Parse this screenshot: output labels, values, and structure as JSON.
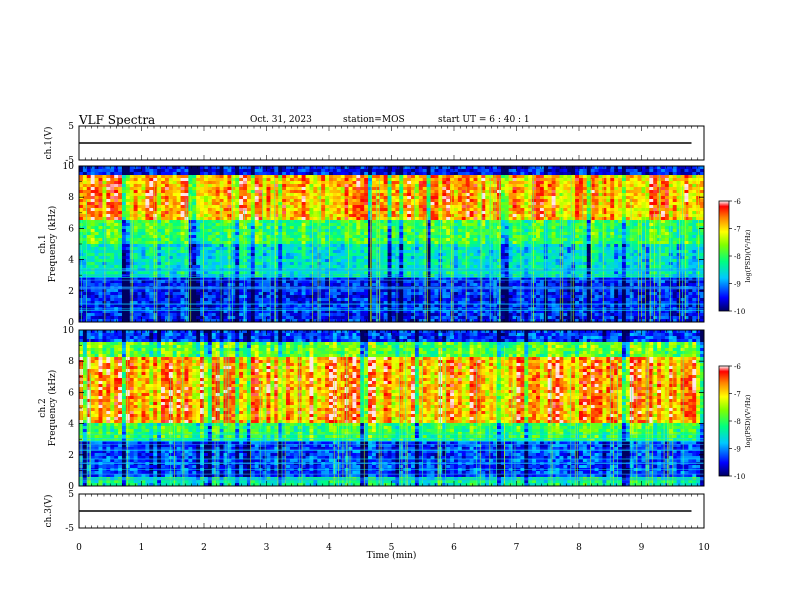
{
  "header": {
    "title": "VLF Spectra",
    "date": "Oct. 31, 2023",
    "station": "station=MOS",
    "start": "start  UT =  6 : 40 : 1"
  },
  "chart_data": [
    {
      "type": "line",
      "panel": "ch1-waveform",
      "ylabel": "ch.1(V)",
      "ylim": [
        -5,
        5
      ],
      "yticks": [
        "5",
        "-5"
      ],
      "xlim": [
        0,
        10
      ],
      "series": [
        {
          "x": [
            0,
            9.8
          ],
          "y": [
            0,
            0
          ]
        }
      ]
    },
    {
      "type": "heatmap",
      "panel": "ch1-spectrogram",
      "ylabel": "ch.1 Frequency (kHz)",
      "ylim": [
        0,
        10
      ],
      "yticks": [
        "0",
        "2",
        "4",
        "6",
        "8",
        "10"
      ],
      "xlim": [
        0,
        10
      ],
      "colorbar": {
        "label": "log(PSD)(V²/Hz)",
        "range": [
          -10,
          -6
        ],
        "ticks": [
          "-6",
          "-7",
          "-8",
          "-9",
          "-10"
        ]
      }
    },
    {
      "type": "heatmap",
      "panel": "ch2-spectrogram",
      "ylabel": "ch.2 Frequency (kHz)",
      "ylim": [
        0,
        10
      ],
      "yticks": [
        "0",
        "2",
        "4",
        "6",
        "8",
        "10"
      ],
      "xlim": [
        0,
        10
      ],
      "colorbar": {
        "label": "log(PSD)(V²/Hz)",
        "range": [
          -10,
          -6
        ],
        "ticks": [
          "-6",
          "-7",
          "-8",
          "-9",
          "-10"
        ]
      }
    },
    {
      "type": "line",
      "panel": "ch3-waveform",
      "ylabel": "ch.3(V)",
      "ylim": [
        -5,
        5
      ],
      "yticks": [
        "5",
        "-5"
      ],
      "xlim": [
        0,
        10
      ],
      "xlabel": "Time  (min)",
      "xticks": [
        "0",
        "1",
        "2",
        "3",
        "4",
        "5",
        "6",
        "7",
        "8",
        "9",
        "10"
      ],
      "series": [
        {
          "x": [
            0,
            9.8
          ],
          "y": [
            0,
            0
          ]
        }
      ]
    }
  ]
}
